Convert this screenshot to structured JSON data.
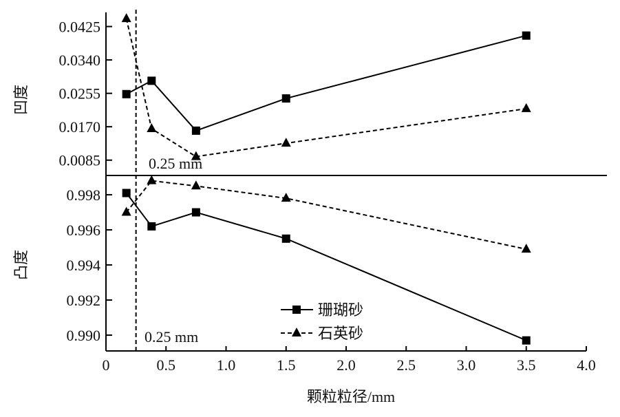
{
  "chart_data": {
    "type": "line",
    "xlabel": "颗粒粒径/mm",
    "x_ticks": [
      "0",
      "0.5",
      "1.0",
      "1.5",
      "2.0",
      "2.5",
      "3.0",
      "3.5",
      "4.0"
    ],
    "xlim": [
      0,
      4.0
    ],
    "x": [
      0.17,
      0.38,
      0.75,
      1.5,
      3.5
    ],
    "reference_line": {
      "x": 0.25,
      "label": "0.25 mm"
    },
    "panels": [
      {
        "name": "top",
        "ylabel": "凹度",
        "y_ticks": [
          "0.0425",
          "0.0340",
          "0.0255",
          "0.0170",
          "0.0085"
        ],
        "ylim": [
          0.0046,
          0.0461
        ],
        "series": [
          {
            "name": "珊瑚砂",
            "marker": "square",
            "line": "solid",
            "values": [
              0.0253,
              0.0287,
              0.016,
              0.0242,
              0.0402
            ]
          },
          {
            "name": "石英砂",
            "marker": "triangle",
            "line": "dashed",
            "values": [
              0.0445,
              0.0165,
              0.0094,
              0.0128,
              0.0216
            ]
          }
        ]
      },
      {
        "name": "bottom",
        "ylabel": "凸度",
        "y_ticks": [
          "0.998",
          "0.996",
          "0.994",
          "0.992",
          "0.990"
        ],
        "ylim": [
          0.9891,
          0.9991
        ],
        "series": [
          {
            "name": "珊瑚砂",
            "marker": "square",
            "line": "solid",
            "values": [
              0.9981,
              0.9962,
              0.997,
              0.9955,
              0.9897
            ]
          },
          {
            "name": "石英砂",
            "marker": "triangle",
            "line": "dashed",
            "values": [
              0.997,
              0.9988,
              0.9985,
              0.9978,
              0.9949
            ]
          }
        ]
      }
    ],
    "legend": {
      "placement": "bottom-center",
      "entries": [
        "珊瑚砂",
        "石英砂"
      ]
    }
  }
}
